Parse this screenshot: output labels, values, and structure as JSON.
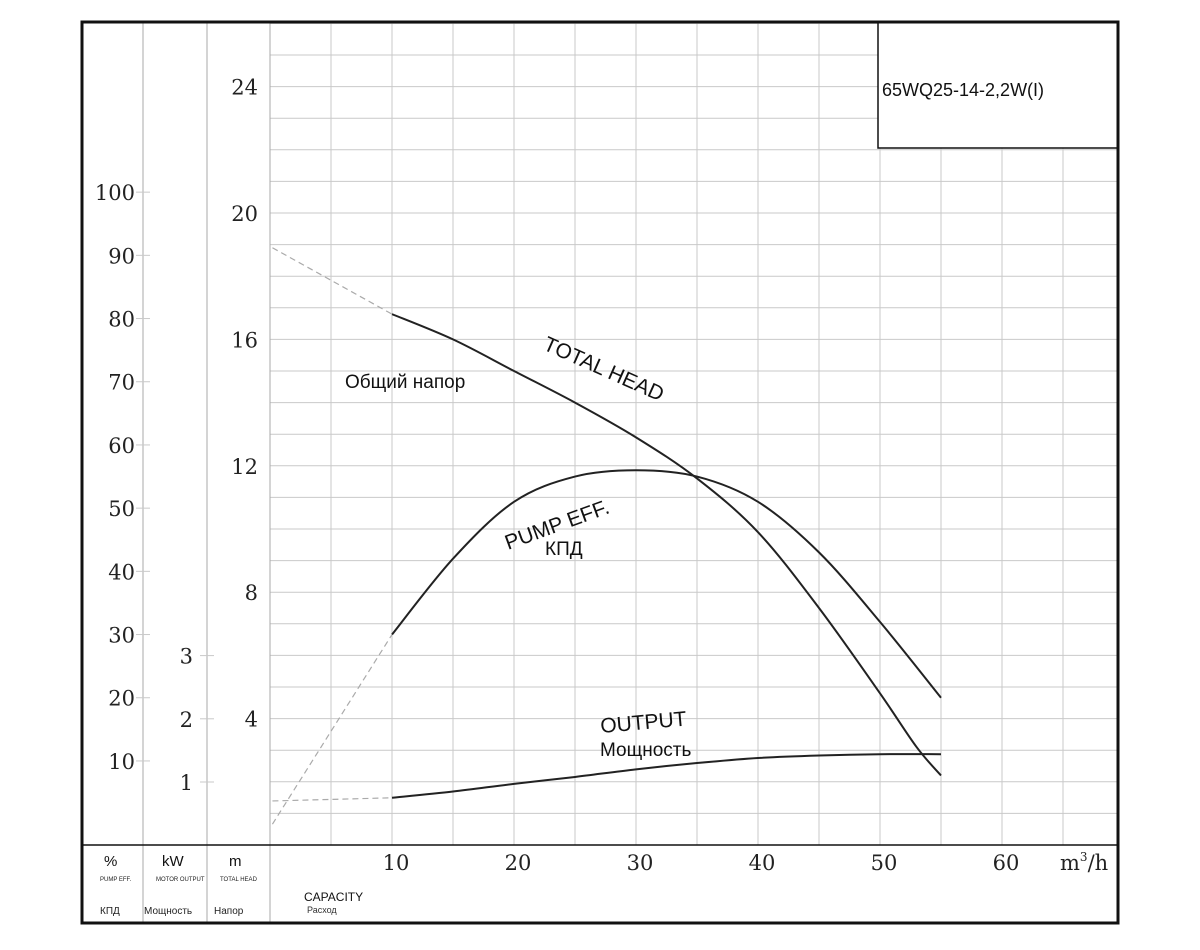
{
  "chart_data": {
    "type": "line",
    "title": "65WQ25-14-2,2W(I)",
    "x_axis": {
      "label": "m³/h",
      "label_main": "m",
      "label_sup": "3",
      "label_tail": "/h",
      "title_en": "CAPACITY",
      "title_ru": "Расход",
      "ticks": [
        "10",
        "20",
        "30",
        "40",
        "50",
        "60"
      ],
      "range": [
        0,
        70
      ]
    },
    "y_axes": [
      {
        "id": "eff",
        "unit": "%",
        "header": "%",
        "sub_en": "PUMP EFF.",
        "sub_ru": "КПД",
        "ticks": [
          "10",
          "20",
          "30",
          "40",
          "50",
          "60",
          "70",
          "80",
          "90",
          "100"
        ],
        "range": [
          -3.3,
          130
        ]
      },
      {
        "id": "power",
        "unit": "kW",
        "header": "kW",
        "sub_en": "MOTOR OUTPUT",
        "sub_ru": "Мощность",
        "ticks": [
          "1",
          "2",
          "3"
        ],
        "range": [
          -0.33,
          4.33
        ]
      },
      {
        "id": "head",
        "unit": "m",
        "header": "m",
        "sub_en": "TOTAL HEAD",
        "sub_ru": "Напор",
        "ticks": [
          "4",
          "8",
          "12",
          "16",
          "20",
          "24"
        ],
        "range": [
          0,
          26
        ]
      }
    ],
    "series": [
      {
        "name": "TOTAL HEAD",
        "name_ru": "Общий напор",
        "axis": "head",
        "x": [
          10,
          15,
          20,
          25,
          30,
          35,
          40,
          45,
          50,
          53,
          55
        ],
        "y": [
          16.8,
          16.0,
          15.0,
          14.0,
          12.9,
          11.6,
          9.9,
          7.5,
          4.8,
          3.1,
          2.2
        ]
      },
      {
        "name": "PUMP EFF.",
        "name_ru": "КПД",
        "axis": "eff",
        "x": [
          10,
          15,
          20,
          25,
          30,
          35,
          40,
          45,
          50,
          55
        ],
        "y": [
          30,
          42,
          51,
          55,
          56,
          55,
          51,
          43,
          32,
          20
        ]
      },
      {
        "name": "OUTPUT",
        "name_ru": "Мощность",
        "axis": "power",
        "x": [
          10,
          15,
          20,
          25,
          30,
          35,
          40,
          45,
          50,
          55
        ],
        "y": [
          0.75,
          0.85,
          0.97,
          1.08,
          1.2,
          1.3,
          1.38,
          1.42,
          1.44,
          1.44
        ]
      }
    ],
    "grid": true
  }
}
